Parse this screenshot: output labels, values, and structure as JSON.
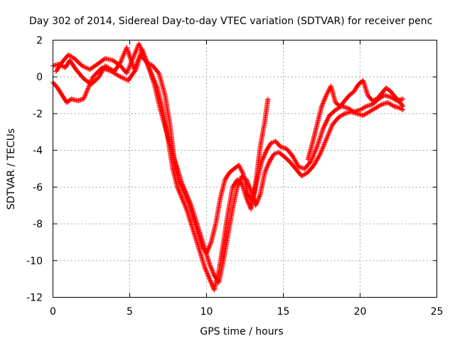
{
  "chart_data": {
    "type": "scatter",
    "title": "Day 302 of 2014, Sidereal Day-to-day VTEC variation (SDTVAR) for receiver penc",
    "xlabel": "GPS time / hours",
    "ylabel": "SDTVAR / TECUs",
    "xlim": [
      0,
      25
    ],
    "ylim": [
      -12,
      2
    ],
    "xticks": [
      0,
      5,
      10,
      15,
      20,
      25
    ],
    "yticks": [
      -12,
      -10,
      -8,
      -6,
      -4,
      -2,
      0,
      2
    ],
    "xtick_labels": [
      "0",
      "5",
      "10",
      "15",
      "20",
      "25"
    ],
    "ytick_labels": [
      "-12",
      "-10",
      "-8",
      "-6",
      "-4",
      "-2",
      "0",
      "2"
    ],
    "grid": true,
    "legend": "none",
    "marker": "plus",
    "color": "#ff0000",
    "series": [
      {
        "x": [
          0.0,
          0.4,
          0.8,
          1.1,
          1.5,
          2.0,
          2.5,
          3.0,
          3.4,
          4.0,
          4.4,
          4.8,
          5.0,
          5.3,
          5.7,
          6.1,
          6.5,
          6.9,
          7.3,
          7.6,
          7.9,
          8.2,
          8.5,
          8.8,
          9.1,
          9.4,
          9.7,
          10.0,
          10.3,
          10.6,
          10.9,
          11.2,
          11.5,
          11.8,
          12.1,
          12.4,
          12.7,
          13.0,
          13.3,
          13.6,
          13.9,
          14.2,
          14.5,
          14.8,
          15.2,
          15.6,
          16.0,
          16.4,
          16.8,
          17.2,
          17.6,
          18.0,
          18.4,
          18.8,
          19.2,
          19.6,
          20.0,
          20.4,
          20.8,
          21.2,
          21.6,
          22.0,
          22.4,
          22.8
        ],
        "y": [
          0.6,
          0.7,
          0.5,
          0.9,
          0.4,
          -0.1,
          -0.4,
          0.0,
          0.6,
          0.3,
          0.8,
          1.6,
          1.1,
          0.4,
          1.2,
          0.8,
          0.6,
          0.2,
          -1.0,
          -2.5,
          -4.5,
          -5.7,
          -6.2,
          -6.8,
          -7.6,
          -8.4,
          -9.2,
          -9.6,
          -9.0,
          -8.0,
          -6.6,
          -5.6,
          -5.2,
          -5.0,
          -4.8,
          -5.3,
          -6.4,
          -6.8,
          -5.6,
          -4.6,
          -4.0,
          -3.6,
          -3.5,
          -3.8,
          -3.9,
          -4.3,
          -4.9,
          -5.0,
          -4.6,
          -3.8,
          -2.8,
          -2.1,
          -1.8,
          -1.6,
          -1.7,
          -1.9,
          -1.8,
          -1.6,
          -1.5,
          -1.2,
          -1.0,
          -1.1,
          -1.3,
          -1.2
        ]
      },
      {
        "x": [
          0.0,
          0.3,
          0.6,
          0.9,
          1.2,
          1.6,
          2.0,
          2.6,
          3.2,
          3.8,
          4.4,
          4.9,
          5.4,
          5.8,
          6.2,
          6.6,
          7.0,
          7.4,
          7.8,
          8.1,
          8.4,
          8.7,
          9.0,
          9.3,
          9.6,
          9.9,
          10.2,
          10.5,
          10.8,
          11.1,
          11.4,
          11.7,
          12.0,
          12.3,
          12.6,
          12.9,
          13.2,
          13.5,
          13.8,
          14.1,
          14.4,
          14.7,
          15.0,
          15.4,
          15.8,
          16.2,
          16.6,
          17.0,
          17.4,
          17.8,
          18.2,
          18.6,
          19.0,
          19.4,
          19.8,
          20.2,
          20.6,
          21.0,
          21.4,
          21.8,
          22.2,
          22.6,
          22.8
        ],
        "y": [
          -0.3,
          -0.6,
          -1.0,
          -1.4,
          -1.2,
          -1.3,
          -1.2,
          0.0,
          0.5,
          0.3,
          0.0,
          -0.2,
          0.4,
          1.5,
          0.6,
          -0.4,
          -1.8,
          -3.0,
          -4.2,
          -5.0,
          -5.8,
          -6.4,
          -7.0,
          -7.8,
          -8.6,
          -9.4,
          -10.2,
          -10.8,
          -11.2,
          -10.0,
          -8.6,
          -7.2,
          -6.0,
          -5.4,
          -5.6,
          -6.2,
          -7.0,
          -6.4,
          -5.2,
          -4.6,
          -4.2,
          -4.1,
          -4.3,
          -4.6,
          -5.0,
          -5.4,
          -5.2,
          -4.8,
          -4.2,
          -3.4,
          -2.6,
          -2.2,
          -2.0,
          -1.9,
          -2.0,
          -2.1,
          -1.9,
          -1.7,
          -1.5,
          -1.4,
          -1.6,
          -1.7,
          -1.8
        ]
      },
      {
        "x": [
          0.2,
          0.6,
          1.0,
          1.4,
          1.9,
          2.4,
          2.9,
          3.4,
          3.9,
          4.4,
          4.8,
          5.2,
          5.6,
          6.0,
          6.4,
          6.8,
          7.2,
          7.5,
          7.8,
          8.1,
          8.4,
          8.7,
          9.0,
          9.3,
          9.6,
          9.9,
          10.2,
          10.5,
          10.8,
          11.1,
          11.4,
          11.7,
          12.0,
          12.3,
          12.6,
          12.9,
          13.2,
          13.5,
          13.8,
          14.0
        ],
        "y": [
          0.3,
          0.8,
          1.2,
          1.0,
          0.6,
          0.4,
          0.7,
          1.0,
          0.9,
          0.6,
          0.2,
          1.0,
          1.8,
          1.0,
          0.2,
          -0.6,
          -2.0,
          -3.4,
          -5.0,
          -6.0,
          -6.6,
          -7.2,
          -8.0,
          -8.8,
          -9.6,
          -10.4,
          -11.0,
          -11.6,
          -10.6,
          -9.0,
          -7.4,
          -6.0,
          -5.6,
          -5.8,
          -6.6,
          -7.2,
          -5.8,
          -3.8,
          -2.4,
          -1.2
        ]
      },
      {
        "x": [
          16.6,
          16.9,
          17.2,
          17.5,
          17.8,
          18.1,
          18.4,
          18.7,
          19.0,
          19.3,
          19.6,
          19.9,
          20.2,
          20.5,
          20.8,
          21.1,
          21.4,
          21.7,
          22.0,
          22.3,
          22.6,
          22.8
        ],
        "y": [
          -4.5,
          -3.6,
          -2.6,
          -1.6,
          -1.0,
          -0.5,
          -1.4,
          -1.6,
          -1.3,
          -1.0,
          -0.8,
          -0.4,
          -0.2,
          -1.0,
          -1.3,
          -1.2,
          -0.9,
          -0.6,
          -0.8,
          -1.1,
          -1.4,
          -1.6
        ]
      }
    ]
  }
}
